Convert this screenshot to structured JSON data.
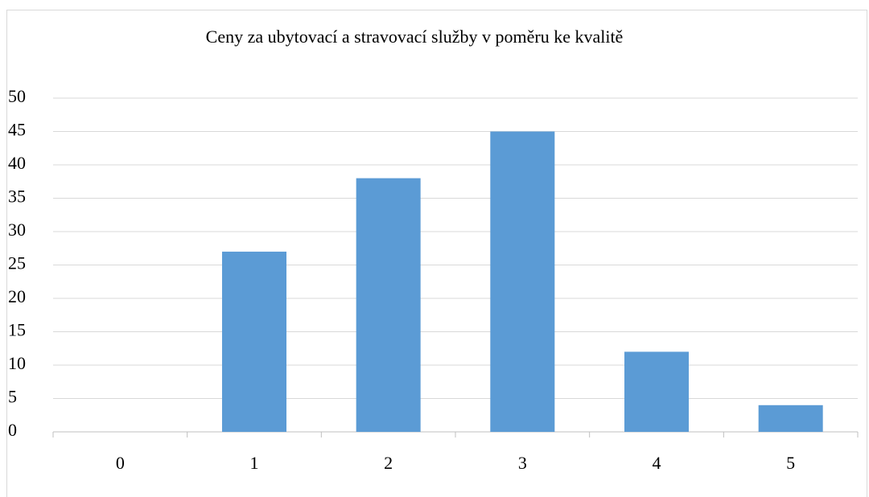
{
  "chart_data": {
    "type": "bar",
    "title": "Ceny za ubytovací a stravovací služby v poměru ke kvalitě",
    "categories": [
      "0",
      "1",
      "2",
      "3",
      "4",
      "5"
    ],
    "values": [
      0,
      27,
      38,
      45,
      12,
      4
    ],
    "color": "#5b9bd5",
    "ylim": [
      0,
      50
    ],
    "yticks": [
      0,
      5,
      10,
      15,
      20,
      25,
      30,
      35,
      40,
      45,
      50
    ],
    "grid": true
  }
}
